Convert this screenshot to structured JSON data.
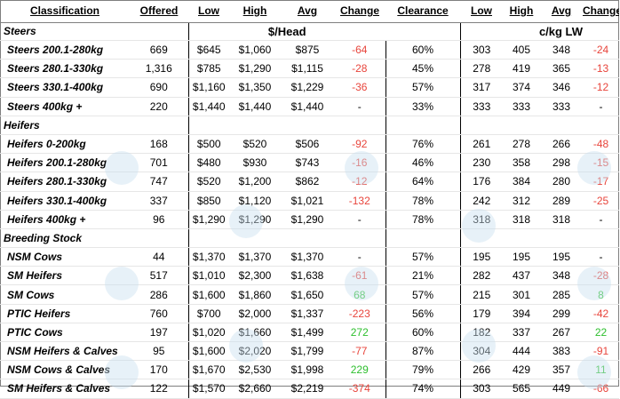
{
  "headers": {
    "classification": "Classification",
    "offered": "Offered",
    "low": "Low",
    "high": "High",
    "avg": "Avg",
    "change": "Change",
    "clearance": "Clearance",
    "low2": "Low",
    "high2": "High",
    "avg2": "Avg",
    "change2": "Change"
  },
  "units": {
    "head": "$/Head",
    "lw": "c/kg LW"
  },
  "groups": [
    {
      "name": "Steers",
      "rows": [
        {
          "name": "Steers 200.1-280kg",
          "offered": "669",
          "low": "$645",
          "high": "$1,060",
          "avg": "$875",
          "change": "-64",
          "clearance": "60%",
          "low_c": "303",
          "high_c": "405",
          "avg_c": "348",
          "change_c": "-24"
        },
        {
          "name": "Steers 280.1-330kg",
          "offered": "1,316",
          "low": "$785",
          "high": "$1,290",
          "avg": "$1,115",
          "change": "-28",
          "clearance": "45%",
          "low_c": "278",
          "high_c": "419",
          "avg_c": "365",
          "change_c": "-13"
        },
        {
          "name": "Steers 330.1-400kg",
          "offered": "690",
          "low": "$1,160",
          "high": "$1,350",
          "avg": "$1,229",
          "change": "-36",
          "clearance": "57%",
          "low_c": "317",
          "high_c": "374",
          "avg_c": "346",
          "change_c": "-12"
        },
        {
          "name": "Steers 400kg +",
          "offered": "220",
          "low": "$1,440",
          "high": "$1,440",
          "avg": "$1,440",
          "change": "-",
          "clearance": "33%",
          "low_c": "333",
          "high_c": "333",
          "avg_c": "333",
          "change_c": "-"
        }
      ]
    },
    {
      "name": "Heifers",
      "rows": [
        {
          "name": "Heifers 0-200kg",
          "offered": "168",
          "low": "$500",
          "high": "$520",
          "avg": "$506",
          "change": "-92",
          "clearance": "76%",
          "low_c": "261",
          "high_c": "278",
          "avg_c": "266",
          "change_c": "-48"
        },
        {
          "name": "Heifers 200.1-280kg",
          "offered": "701",
          "low": "$480",
          "high": "$930",
          "avg": "$743",
          "change": "-16",
          "clearance": "46%",
          "low_c": "230",
          "high_c": "358",
          "avg_c": "298",
          "change_c": "-15"
        },
        {
          "name": "Heifers 280.1-330kg",
          "offered": "747",
          "low": "$520",
          "high": "$1,200",
          "avg": "$862",
          "change": "-12",
          "clearance": "64%",
          "low_c": "176",
          "high_c": "384",
          "avg_c": "280",
          "change_c": "-17"
        },
        {
          "name": "Heifers 330.1-400kg",
          "offered": "337",
          "low": "$850",
          "high": "$1,120",
          "avg": "$1,021",
          "change": "-132",
          "clearance": "78%",
          "low_c": "242",
          "high_c": "312",
          "avg_c": "289",
          "change_c": "-25"
        },
        {
          "name": "Heifers 400kg +",
          "offered": "96",
          "low": "$1,290",
          "high": "$1,290",
          "avg": "$1,290",
          "change": "-",
          "clearance": "78%",
          "low_c": "318",
          "high_c": "318",
          "avg_c": "318",
          "change_c": "-"
        }
      ]
    },
    {
      "name": "Breeding Stock",
      "rows": [
        {
          "name": "NSM Cows",
          "offered": "44",
          "low": "$1,370",
          "high": "$1,370",
          "avg": "$1,370",
          "change": "-",
          "clearance": "57%",
          "low_c": "195",
          "high_c": "195",
          "avg_c": "195",
          "change_c": "-"
        },
        {
          "name": "SM Heifers",
          "offered": "517",
          "low": "$1,010",
          "high": "$2,300",
          "avg": "$1,638",
          "change": "-61",
          "clearance": "21%",
          "low_c": "282",
          "high_c": "437",
          "avg_c": "348",
          "change_c": "-28"
        },
        {
          "name": "SM Cows",
          "offered": "286",
          "low": "$1,600",
          "high": "$1,860",
          "avg": "$1,650",
          "change": "68",
          "clearance": "57%",
          "low_c": "215",
          "high_c": "301",
          "avg_c": "285",
          "change_c": "8"
        },
        {
          "name": "PTIC Heifers",
          "offered": "760",
          "low": "$700",
          "high": "$2,000",
          "avg": "$1,337",
          "change": "-223",
          "clearance": "56%",
          "low_c": "179",
          "high_c": "394",
          "avg_c": "299",
          "change_c": "-42"
        },
        {
          "name": "PTIC Cows",
          "offered": "197",
          "low": "$1,020",
          "high": "$1,660",
          "avg": "$1,499",
          "change": "272",
          "clearance": "60%",
          "low_c": "182",
          "high_c": "337",
          "avg_c": "267",
          "change_c": "22"
        },
        {
          "name": "NSM Heifers & Calves",
          "offered": "95",
          "low": "$1,600",
          "high": "$2,020",
          "avg": "$1,799",
          "change": "-77",
          "clearance": "87%",
          "low_c": "304",
          "high_c": "444",
          "avg_c": "383",
          "change_c": "-91"
        },
        {
          "name": "NSM Cows & Calves",
          "offered": "170",
          "low": "$1,670",
          "high": "$2,530",
          "avg": "$1,998",
          "change": "229",
          "clearance": "79%",
          "low_c": "266",
          "high_c": "429",
          "avg_c": "357",
          "change_c": "11"
        },
        {
          "name": "SM Heifers & Calves",
          "offered": "122",
          "low": "$1,570",
          "high": "$2,660",
          "avg": "$2,219",
          "change": "-374",
          "clearance": "74%",
          "low_c": "303",
          "high_c": "565",
          "avg_c": "449",
          "change_c": "-66"
        }
      ]
    }
  ],
  "colors": {
    "negative": "#e8453c",
    "positive": "#2ebf2e",
    "watermark": "#c9dff0"
  }
}
